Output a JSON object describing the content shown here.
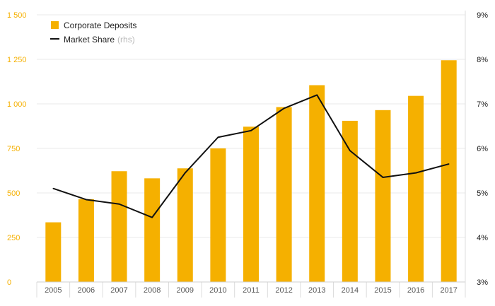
{
  "chart_data": {
    "type": "bar+line",
    "categories": [
      "2005",
      "2006",
      "2007",
      "2008",
      "2009",
      "2010",
      "2011",
      "2012",
      "2013",
      "2014",
      "2015",
      "2016",
      "2017"
    ],
    "series": [
      {
        "name": "Corporate Deposits",
        "kind": "bar",
        "axis": "left",
        "color": "#f5b000",
        "values": [
          335,
          465,
          622,
          582,
          638,
          750,
          872,
          982,
          1105,
          905,
          965,
          1045,
          1245
        ]
      },
      {
        "name": "Market Share",
        "name_suffix": "(rhs)",
        "kind": "line",
        "axis": "right",
        "color": "#111111",
        "values": [
          5.1,
          4.85,
          4.75,
          4.45,
          5.45,
          6.25,
          6.4,
          6.9,
          7.2,
          5.95,
          5.35,
          5.45,
          5.65
        ]
      }
    ],
    "y_left": {
      "range": [
        0,
        1500
      ],
      "ticks": [
        0,
        250,
        500,
        750,
        1000,
        1250,
        1500
      ],
      "tick_labels": [
        "0",
        "250",
        "500",
        "750",
        "1 000",
        "1 250",
        "1 500"
      ]
    },
    "y_right": {
      "range": [
        3,
        9
      ],
      "ticks": [
        3,
        4,
        5,
        6,
        7,
        8,
        9
      ],
      "tick_labels": [
        "3%",
        "4%",
        "5%",
        "6%",
        "7%",
        "8%",
        "9%"
      ]
    },
    "grid": true,
    "legend_position": "top-left",
    "title": "",
    "xlabel": "",
    "ylabel": ""
  }
}
